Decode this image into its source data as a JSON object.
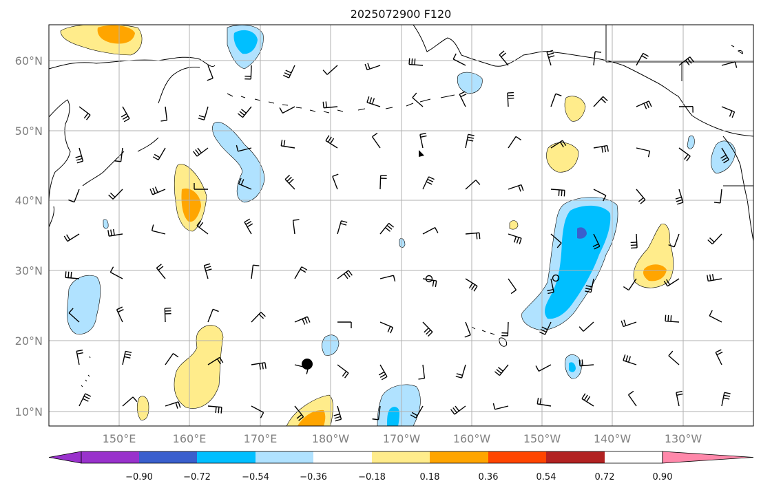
{
  "title": "2025072900 F120",
  "lat_labels": [
    "60°N",
    "50°N",
    "40°N",
    "30°N",
    "20°N",
    "10°N"
  ],
  "lon_labels": [
    "150°E",
    "160°E",
    "170°E",
    "180°W",
    "170°W",
    "160°W",
    "150°W",
    "140°W",
    "130°W"
  ],
  "colorbar": {
    "ticks": [
      "−0.90",
      "−0.72",
      "−0.54",
      "−0.36",
      "−0.18",
      "0.18",
      "0.36",
      "0.54",
      "0.72",
      "0.90"
    ],
    "colors": [
      "#9932cc",
      "#000080",
      "#3a5fcd",
      "#00bfff",
      "#b0e2ff",
      "#ffffff",
      "#ffec8b",
      "#ffa500",
      "#ff4500",
      "#b22222",
      "#ff88aa"
    ]
  },
  "map_colors": {
    "land_outline": "#000000",
    "grid": "#b0b0b0",
    "barbs": "#000000"
  }
}
